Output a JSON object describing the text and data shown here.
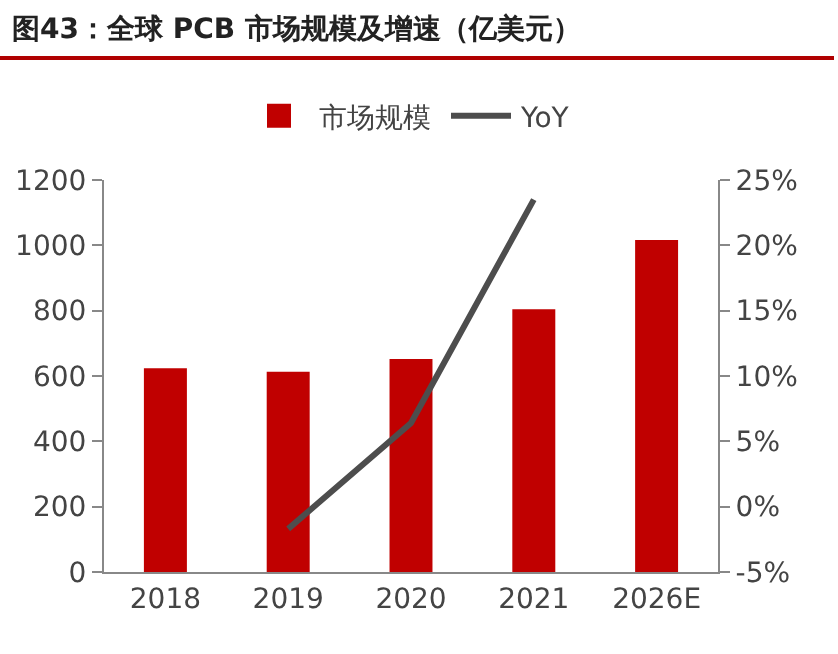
{
  "chart_data": {
    "type": "bar",
    "title": "图43：全球 PCB 市场规模及增速（亿美元）",
    "categories": [
      "2018",
      "2019",
      "2020",
      "2021",
      "2026E"
    ],
    "series": [
      {
        "name": "市场规模",
        "color": "#c00000",
        "values": [
          624,
          613,
          652,
          804,
          1016
        ]
      },
      {
        "name": "YoY",
        "type": "line",
        "axis": "y2",
        "color": "#4d4d4d",
        "values": [
          null,
          -1.7,
          6.4,
          23.5,
          null
        ]
      }
    ],
    "ylim": [
      0,
      1200
    ],
    "yticks": [
      0,
      200,
      400,
      600,
      800,
      1000,
      1200
    ],
    "y2lim": [
      -5,
      25
    ],
    "y2ticks": [
      {
        "value": -5,
        "label": "-5%"
      },
      {
        "value": 0,
        "label": "0%"
      },
      {
        "value": 5,
        "label": "5%"
      },
      {
        "value": 10,
        "label": "10%"
      },
      {
        "value": 15,
        "label": "15%"
      },
      {
        "value": 20,
        "label": "20%"
      },
      {
        "value": 25,
        "label": "25%"
      }
    ],
    "grid": false,
    "legend": "top",
    "marker": "none",
    "line_style": "solid"
  }
}
